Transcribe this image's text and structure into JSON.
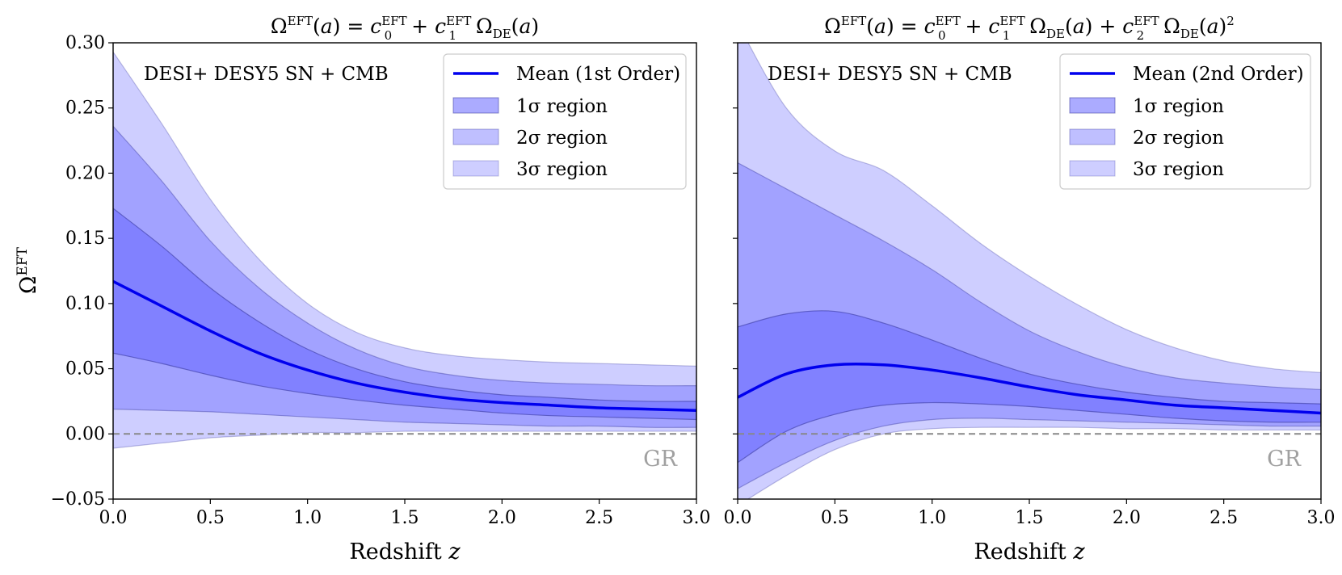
{
  "chart_data": [
    {
      "type": "area",
      "title": "Ω^EFT(a) = c0^EFT + c1^EFT ΩDE(a)",
      "xlabel": "Redshift z",
      "ylabel": "Ω^EFT",
      "xlim": [
        0,
        3
      ],
      "ylim": [
        -0.05,
        0.3
      ],
      "xticks": [
        "0.0",
        "0.5",
        "1.0",
        "1.5",
        "2.0",
        "2.5",
        "3.0"
      ],
      "yticks": [
        "−0.05",
        "0.00",
        "0.05",
        "0.10",
        "0.15",
        "0.20",
        "0.25",
        "0.30"
      ],
      "annotation": "DESI+ DESY5 SN + CMB",
      "reference_line": {
        "y": 0.0,
        "label": "GR",
        "color": "#888888",
        "style": "dashed"
      },
      "legend": {
        "position": "top-right",
        "entries": [
          "Mean (1st Order)",
          "1σ region",
          "2σ region",
          "3σ region"
        ]
      },
      "x": [
        0.0,
        0.25,
        0.5,
        0.75,
        1.0,
        1.25,
        1.5,
        1.75,
        2.0,
        2.25,
        2.5,
        2.75,
        3.0
      ],
      "series": [
        {
          "name": "Mean (1st Order)",
          "color": "#0000ee",
          "values": [
            0.117,
            0.098,
            0.079,
            0.062,
            0.049,
            0.039,
            0.032,
            0.027,
            0.024,
            0.022,
            0.02,
            0.019,
            0.018
          ]
        },
        {
          "name": "1σ upper",
          "values": [
            0.173,
            0.144,
            0.112,
            0.086,
            0.065,
            0.05,
            0.04,
            0.034,
            0.03,
            0.028,
            0.026,
            0.025,
            0.025
          ]
        },
        {
          "name": "1σ lower",
          "values": [
            0.062,
            0.054,
            0.045,
            0.037,
            0.031,
            0.026,
            0.022,
            0.019,
            0.016,
            0.014,
            0.013,
            0.012,
            0.011
          ]
        },
        {
          "name": "2σ upper",
          "values": [
            0.236,
            0.194,
            0.148,
            0.112,
            0.085,
            0.065,
            0.052,
            0.045,
            0.041,
            0.039,
            0.038,
            0.037,
            0.037
          ]
        },
        {
          "name": "2σ lower",
          "values": [
            0.019,
            0.018,
            0.017,
            0.015,
            0.013,
            0.011,
            0.009,
            0.008,
            0.007,
            0.006,
            0.006,
            0.005,
            0.005
          ]
        },
        {
          "name": "3σ upper",
          "values": [
            0.293,
            0.238,
            0.18,
            0.134,
            0.1,
            0.078,
            0.066,
            0.06,
            0.057,
            0.055,
            0.054,
            0.053,
            0.052
          ]
        },
        {
          "name": "3σ lower",
          "values": [
            -0.011,
            -0.007,
            -0.003,
            -0.001,
            0.001,
            0.001,
            0.002,
            0.002,
            0.002,
            0.002,
            0.002,
            0.002,
            0.002
          ]
        }
      ]
    },
    {
      "type": "area",
      "title": "Ω^EFT(a) = c0^EFT + c1^EFT ΩDE(a) + c2^EFT ΩDE(a)^2",
      "xlabel": "Redshift z",
      "ylabel": "",
      "xlim": [
        0,
        3
      ],
      "ylim": [
        -0.05,
        0.3
      ],
      "xticks": [
        "0.0",
        "0.5",
        "1.0",
        "1.5",
        "2.0",
        "2.5",
        "3.0"
      ],
      "annotation": "DESI+ DESY5 SN + CMB",
      "reference_line": {
        "y": 0.0,
        "label": "GR",
        "color": "#888888",
        "style": "dashed"
      },
      "legend": {
        "position": "top-right",
        "entries": [
          "Mean (2nd Order)",
          "1σ region",
          "2σ region",
          "3σ region"
        ]
      },
      "x": [
        0.0,
        0.25,
        0.5,
        0.75,
        1.0,
        1.25,
        1.5,
        1.75,
        2.0,
        2.25,
        2.5,
        2.75,
        3.0
      ],
      "series": [
        {
          "name": "Mean (2nd Order)",
          "color": "#0000ee",
          "values": [
            0.028,
            0.046,
            0.053,
            0.053,
            0.049,
            0.043,
            0.036,
            0.03,
            0.026,
            0.022,
            0.02,
            0.018,
            0.016
          ]
        },
        {
          "name": "1σ upper",
          "values": [
            0.082,
            0.092,
            0.094,
            0.085,
            0.072,
            0.058,
            0.046,
            0.038,
            0.032,
            0.028,
            0.025,
            0.024,
            0.023
          ]
        },
        {
          "name": "1σ lower",
          "values": [
            -0.022,
            0.002,
            0.015,
            0.022,
            0.024,
            0.023,
            0.021,
            0.018,
            0.015,
            0.012,
            0.01,
            0.009,
            0.009
          ]
        },
        {
          "name": "2σ upper",
          "values": [
            0.208,
            0.188,
            0.168,
            0.148,
            0.126,
            0.101,
            0.079,
            0.063,
            0.051,
            0.043,
            0.039,
            0.036,
            0.034
          ]
        },
        {
          "name": "2σ lower",
          "values": [
            -0.042,
            -0.022,
            -0.005,
            0.006,
            0.011,
            0.012,
            0.011,
            0.01,
            0.009,
            0.008,
            0.007,
            0.006,
            0.006
          ]
        },
        {
          "name": "3σ upper",
          "values": [
            0.315,
            0.25,
            0.217,
            0.202,
            0.175,
            0.146,
            0.121,
            0.099,
            0.08,
            0.066,
            0.056,
            0.05,
            0.047
          ]
        },
        {
          "name": "3σ lower",
          "values": [
            -0.055,
            -0.032,
            -0.012,
            0.0,
            0.004,
            0.005,
            0.005,
            0.005,
            0.004,
            0.004,
            0.003,
            0.003,
            0.003
          ]
        }
      ]
    }
  ],
  "styles": {
    "mean_color": "#0000ee",
    "band_fill": "#6666ff",
    "band_edge": "#333399",
    "gr_line_color": "#888888",
    "gr_label_color": "#a0a0a0"
  }
}
